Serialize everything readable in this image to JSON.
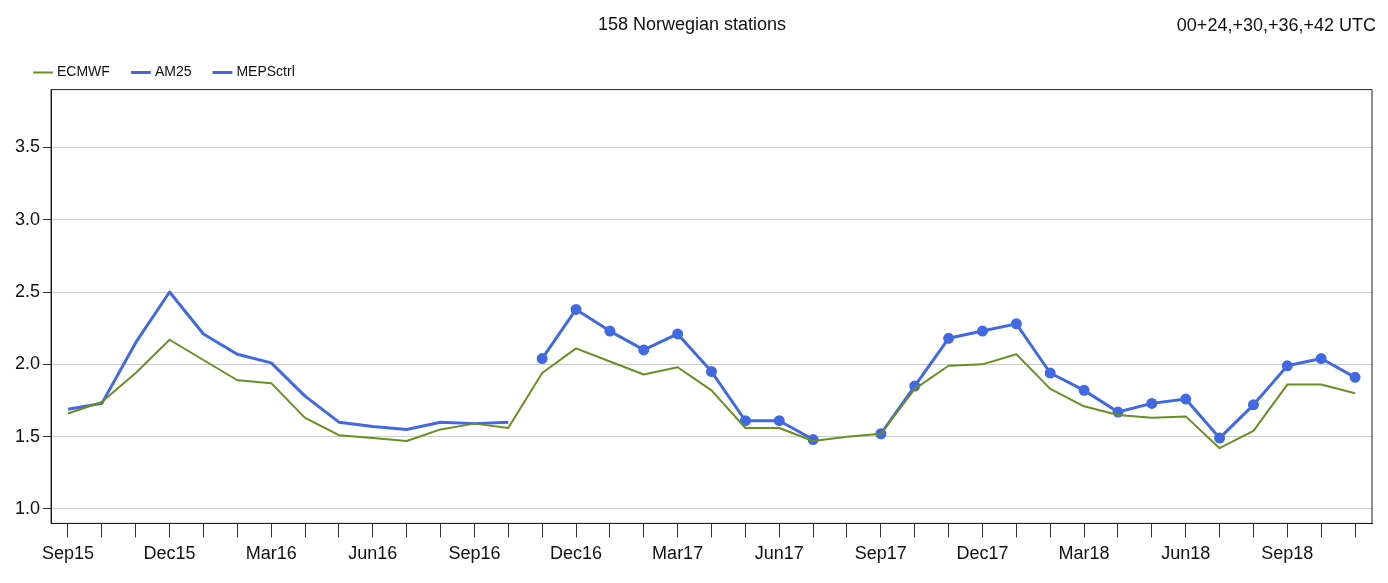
{
  "chart_data": {
    "type": "line",
    "title": "158 Norwegian stations",
    "annotations": [
      "00+24,+30,+36,+42 UTC"
    ],
    "categories": [
      "Sep15",
      null,
      null,
      "Dec15",
      null,
      null,
      "Mar16",
      null,
      null,
      "Jun16",
      null,
      null,
      "Sep16",
      null,
      null,
      "Dec16",
      null,
      null,
      "Mar17",
      null,
      null,
      "Jun17",
      null,
      null,
      "Sep17",
      null,
      null,
      "Dec17",
      null,
      null,
      "Mar18",
      null,
      null,
      "Jun18",
      null,
      null,
      "Sep18",
      null,
      null
    ],
    "series": [
      {
        "name": "ECMWF",
        "color": "#6b8e23",
        "marker": "none",
        "values": [
          1.66,
          1.74,
          1.94,
          2.17,
          2.03,
          1.89,
          1.87,
          1.63,
          1.51,
          1.49,
          1.47,
          1.55,
          1.59,
          1.56,
          1.94,
          2.11,
          2.02,
          1.93,
          1.98,
          1.82,
          1.56,
          1.56,
          1.47,
          1.5,
          1.52,
          1.83,
          1.99,
          2.0,
          2.07,
          1.83,
          1.71,
          1.65,
          1.63,
          1.64,
          1.42,
          1.54,
          1.86,
          1.86,
          1.8
        ]
      },
      {
        "name": "AM25",
        "color": "#4169e1",
        "marker": "none",
        "values": [
          1.69,
          1.73,
          2.15,
          2.5,
          2.21,
          2.07,
          2.01,
          1.78,
          1.6,
          1.57,
          1.55,
          1.6,
          1.59,
          1.6,
          null,
          null,
          null,
          null,
          null,
          null,
          null,
          null,
          null,
          null,
          null,
          null,
          null,
          null,
          null,
          null,
          null,
          null,
          null,
          null,
          null,
          null,
          null,
          null,
          null
        ]
      },
      {
        "name": "MEPSctrl",
        "color": "#4169e1",
        "marker": "circle",
        "values": [
          null,
          null,
          null,
          null,
          null,
          null,
          null,
          null,
          null,
          null,
          null,
          null,
          null,
          null,
          2.04,
          2.38,
          2.23,
          2.1,
          2.21,
          1.95,
          1.61,
          1.61,
          1.48,
          null,
          1.52,
          1.85,
          2.18,
          2.23,
          2.28,
          1.94,
          1.82,
          1.67,
          1.73,
          1.76,
          1.49,
          1.72,
          1.99,
          2.04,
          1.91
        ]
      }
    ],
    "ylim": [
      0.9,
      3.9
    ],
    "yticks": [
      {
        "value": 1,
        "label": "1.0"
      },
      {
        "value": 1.5,
        "label": "1.5"
      },
      {
        "value": 2,
        "label": "2.0"
      },
      {
        "value": 2.5,
        "label": "2.5"
      },
      {
        "value": 3,
        "label": "3.0"
      },
      {
        "value": 3.5,
        "label": "3.5"
      }
    ],
    "grid": "y",
    "legend": "top left",
    "line_style": "solid"
  }
}
